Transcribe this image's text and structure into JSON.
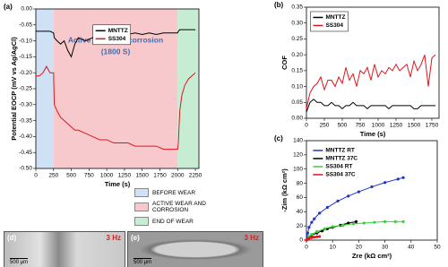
{
  "chart_data": [
    {
      "type": "line",
      "panel": "(a)",
      "x_label": "Time (s)",
      "y_label": "Potential EOCP (mV vs Ag/AgCl)",
      "xlim": [
        0,
        2300
      ],
      "xticks": [
        0,
        250,
        500,
        750,
        1000,
        1250,
        1500,
        1750,
        2000,
        2250
      ],
      "ylim": [
        -0.5,
        0.0
      ],
      "yticks": [
        {
          "value": -0.5,
          "label": "-0.50"
        },
        {
          "value": -0.45,
          "label": "-0.45"
        },
        {
          "value": -0.4,
          "label": "-0.40"
        },
        {
          "value": -0.35,
          "label": "-0.35"
        },
        {
          "value": -0.3,
          "label": "-0.30"
        },
        {
          "value": -0.25,
          "label": "-0.25"
        },
        {
          "value": -0.2,
          "label": "-0.20"
        },
        {
          "value": -0.15,
          "label": "-0.15"
        },
        {
          "value": -0.1,
          "label": "-0.10"
        },
        {
          "value": -0.05,
          "label": "-0.05"
        },
        {
          "value": 0.0,
          "label": "0.00"
        }
      ],
      "legend": "upper center",
      "annotation": [
        "Active wear and corrosion",
        "(1800 S)"
      ],
      "regions": [
        {
          "name": "BEFORE WEAR",
          "start": 0,
          "end": 250,
          "color": "#cfe2f5"
        },
        {
          "name": "ACTIVE WEAR AND CORROSION",
          "start": 250,
          "end": 2000,
          "color": "#f8c9cc"
        },
        {
          "name": "END OF WEAR",
          "start": 2000,
          "end": 2300,
          "color": "#c7ecd4"
        }
      ],
      "series": [
        {
          "name": "MNTTZ",
          "color": "#000000",
          "x": [
            0,
            50,
            100,
            150,
            200,
            250,
            260,
            300,
            350,
            400,
            450,
            500,
            550,
            600,
            700,
            800,
            900,
            1000,
            1100,
            1200,
            1300,
            1400,
            1500,
            1600,
            1700,
            1800,
            1900,
            2000,
            2010,
            2030,
            2060,
            2100,
            2150,
            2200,
            2250
          ],
          "values": [
            -0.07,
            -0.07,
            -0.07,
            -0.07,
            -0.07,
            -0.075,
            -0.09,
            -0.1,
            -0.11,
            -0.1,
            -0.13,
            -0.15,
            -0.11,
            -0.09,
            -0.1,
            -0.09,
            -0.085,
            -0.08,
            -0.085,
            -0.08,
            -0.08,
            -0.075,
            -0.08,
            -0.075,
            -0.08,
            -0.075,
            -0.075,
            -0.075,
            -0.07,
            -0.065,
            -0.065,
            -0.065,
            -0.065,
            -0.065,
            -0.065
          ]
        },
        {
          "name": "SS304",
          "color": "#e0161b",
          "x": [
            0,
            50,
            100,
            150,
            200,
            250,
            260,
            300,
            350,
            400,
            450,
            500,
            550,
            600,
            700,
            800,
            900,
            1000,
            1100,
            1200,
            1300,
            1400,
            1500,
            1600,
            1700,
            1800,
            1900,
            2000,
            2010,
            2030,
            2060,
            2100,
            2150,
            2200,
            2250
          ],
          "values": [
            -0.21,
            -0.21,
            -0.2,
            -0.18,
            -0.2,
            -0.2,
            -0.3,
            -0.32,
            -0.34,
            -0.35,
            -0.36,
            -0.37,
            -0.38,
            -0.38,
            -0.39,
            -0.4,
            -0.41,
            -0.41,
            -0.42,
            -0.42,
            -0.42,
            -0.43,
            -0.43,
            -0.43,
            -0.43,
            -0.44,
            -0.44,
            -0.44,
            -0.42,
            -0.32,
            -0.27,
            -0.24,
            -0.22,
            -0.21,
            -0.2
          ]
        }
      ]
    },
    {
      "type": "line",
      "panel": "(b)",
      "x_label": "Time (s)",
      "y_label": "COF",
      "xlim": [
        0,
        1850
      ],
      "xticks": [
        0,
        250,
        500,
        750,
        1000,
        1250,
        1500,
        1750
      ],
      "ylim": [
        0,
        0.35
      ],
      "yticks": [
        {
          "value": 0,
          "label": "0.00"
        },
        {
          "value": 0.05,
          "label": "0.05"
        },
        {
          "value": 0.1,
          "label": "0.10"
        },
        {
          "value": 0.15,
          "label": "0.15"
        },
        {
          "value": 0.2,
          "label": "0.20"
        },
        {
          "value": 0.25,
          "label": "0.25"
        },
        {
          "value": 0.3,
          "label": "0.30"
        },
        {
          "value": 0.35,
          "label": "0.35"
        }
      ],
      "legend": "upper left",
      "series": [
        {
          "name": "MNTTZ",
          "color": "#000000",
          "x": [
            0,
            50,
            100,
            150,
            200,
            250,
            300,
            350,
            400,
            450,
            500,
            550,
            600,
            650,
            700,
            750,
            800,
            850,
            900,
            950,
            1000,
            1050,
            1100,
            1150,
            1200,
            1250,
            1300,
            1350,
            1400,
            1450,
            1500,
            1550,
            1600,
            1650,
            1700,
            1750,
            1800
          ],
          "values": [
            0.02,
            0.05,
            0.06,
            0.05,
            0.05,
            0.04,
            0.04,
            0.05,
            0.04,
            0.04,
            0.03,
            0.04,
            0.04,
            0.05,
            0.04,
            0.04,
            0.04,
            0.03,
            0.04,
            0.04,
            0.04,
            0.04,
            0.04,
            0.03,
            0.04,
            0.04,
            0.04,
            0.04,
            0.04,
            0.04,
            0.03,
            0.03,
            0.04,
            0.04,
            0.04,
            0.04,
            0.04
          ]
        },
        {
          "name": "SS304",
          "color": "#e0161b",
          "x": [
            0,
            50,
            100,
            150,
            200,
            250,
            300,
            350,
            400,
            450,
            500,
            550,
            600,
            650,
            700,
            750,
            800,
            850,
            900,
            950,
            1000,
            1050,
            1100,
            1150,
            1200,
            1250,
            1300,
            1350,
            1400,
            1450,
            1500,
            1550,
            1600,
            1650,
            1700,
            1750,
            1800
          ],
          "values": [
            0.03,
            0.08,
            0.1,
            0.11,
            0.13,
            0.09,
            0.12,
            0.12,
            0.1,
            0.13,
            0.11,
            0.16,
            0.12,
            0.14,
            0.1,
            0.15,
            0.14,
            0.16,
            0.12,
            0.17,
            0.13,
            0.15,
            0.14,
            0.16,
            0.15,
            0.17,
            0.15,
            0.16,
            0.17,
            0.13,
            0.18,
            0.15,
            0.17,
            0.2,
            0.1,
            0.19,
            0.2
          ]
        }
      ]
    },
    {
      "type": "line",
      "panel": "(c)",
      "x_label": "Zre (kΩ cm²)",
      "y_label": "-Zim (kΩ cm²)",
      "markers": true,
      "xlim": [
        0,
        50
      ],
      "xticks": [
        0,
        10,
        20,
        30,
        40,
        50
      ],
      "ylim": [
        0,
        140
      ],
      "yticks": [
        0,
        20,
        40,
        60,
        80,
        100,
        120,
        140
      ],
      "legend": "upper left",
      "series": [
        {
          "name": "MNTTZ RT",
          "color": "#1f35c8",
          "x": [
            0,
            0.5,
            1,
            2,
            3,
            5,
            8,
            12,
            16,
            20,
            25,
            30,
            35,
            37
          ],
          "values": [
            0,
            10,
            18,
            25,
            30,
            38,
            46,
            55,
            62,
            68,
            75,
            81,
            86,
            88
          ]
        },
        {
          "name": "MNTTZ 37C",
          "color": "#000000",
          "x": [
            0,
            1,
            2,
            4,
            6,
            8,
            10,
            13,
            16,
            19
          ],
          "values": [
            0,
            4,
            7,
            10,
            13,
            16,
            18,
            21,
            24,
            26
          ]
        },
        {
          "name": "SS304 RT",
          "color": "#35d335",
          "x": [
            0,
            1,
            2,
            4,
            7,
            10,
            14,
            18,
            22,
            26,
            30,
            34,
            37
          ],
          "values": [
            0,
            5,
            8,
            12,
            16,
            19,
            21,
            23,
            24,
            25,
            26,
            26,
            26
          ]
        },
        {
          "name": "SS304 37C",
          "color": "#e0161b",
          "x": [
            0,
            0.5,
            1,
            2,
            3,
            4,
            5
          ],
          "values": [
            0,
            1.5,
            2.5,
            3.5,
            4.2,
            4.7,
            5
          ]
        }
      ]
    }
  ],
  "images": [
    {
      "label": "(d)",
      "frequency": "3 Hz",
      "scale": "500 μm"
    },
    {
      "label": "(e)",
      "frequency": "3 Hz",
      "scale": "500 μm"
    }
  ]
}
